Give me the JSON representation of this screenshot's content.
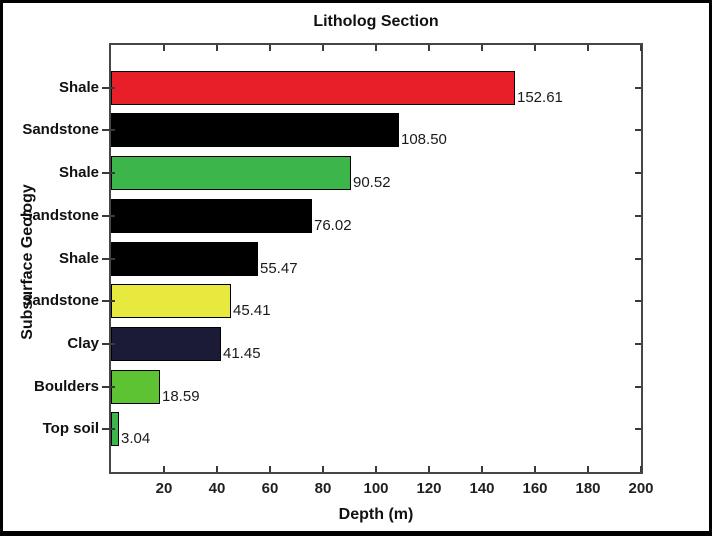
{
  "chart_data": {
    "type": "bar",
    "orientation": "horizontal",
    "title": "Litholog Section",
    "xlabel": "Depth (m)",
    "ylabel": "Subsurface Geology",
    "categories_top_to_bottom": [
      "Shale",
      "Sandstone",
      "Shale",
      "Sandstone",
      "Shale",
      "Sandstone",
      "Clay",
      "Boulders",
      "Top soil"
    ],
    "values": [
      152.61,
      108.5,
      90.52,
      76.02,
      55.47,
      45.41,
      41.45,
      18.59,
      3.04
    ],
    "value_labels": [
      "152.61",
      "108.50",
      "90.52",
      "76.02",
      "55.47",
      "45.41",
      "41.45",
      "18.59",
      "3.04"
    ],
    "bar_colors": [
      "#e81e28",
      "#000000",
      "#3cb54a",
      "#000000",
      "#000000",
      "#e8e93e",
      "#1b1b38",
      "#5ec332",
      "#3cb54a"
    ],
    "bar_edge_color": "#000000",
    "xlim": [
      0,
      200
    ],
    "x_ticks": [
      20,
      40,
      60,
      80,
      100,
      120,
      140,
      160,
      180,
      200
    ],
    "grid": false,
    "legend": null,
    "axis_color": "#464646",
    "tick_color": "#3a3a3a",
    "text_color": "#111111",
    "background_color": "#ffffff",
    "frame_color": "#000000"
  }
}
